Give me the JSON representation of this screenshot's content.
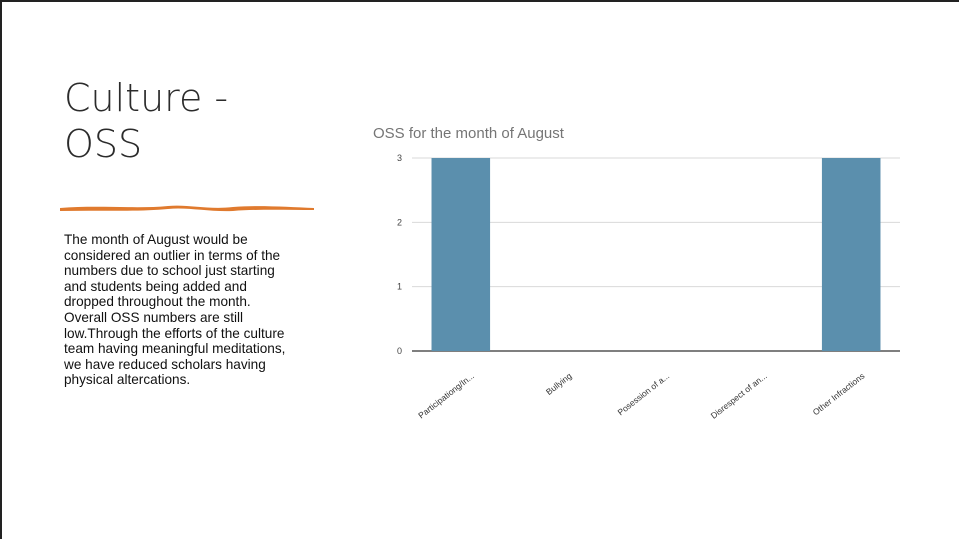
{
  "slide": {
    "title": "Culture -\nOSS",
    "body": "The month of August would be considered an outlier in terms of the numbers due to school just starting and students being added and dropped throughout the month. Overall OSS numbers are still low.Through the efforts of the culture team having meaningful meditations, we have reduced scholars having physical altercations.",
    "underline_color": "#e07a2e"
  },
  "chart_data": {
    "type": "bar",
    "title": "OSS for the month of August",
    "categories": [
      "Participationg/In...",
      "Bullying",
      "Posession of a...",
      "Disrespect of an...",
      "Other Infractions"
    ],
    "values": [
      3,
      0,
      0,
      0,
      3
    ],
    "ylim": [
      0,
      3
    ],
    "yticks": [
      0,
      1,
      2,
      3
    ],
    "xlabel": "",
    "ylabel": "",
    "grid": true,
    "bar_color": "#5b8fad",
    "title_color": "#757575",
    "grid_color": "#d9d9d9",
    "axis_color": "#333333"
  }
}
